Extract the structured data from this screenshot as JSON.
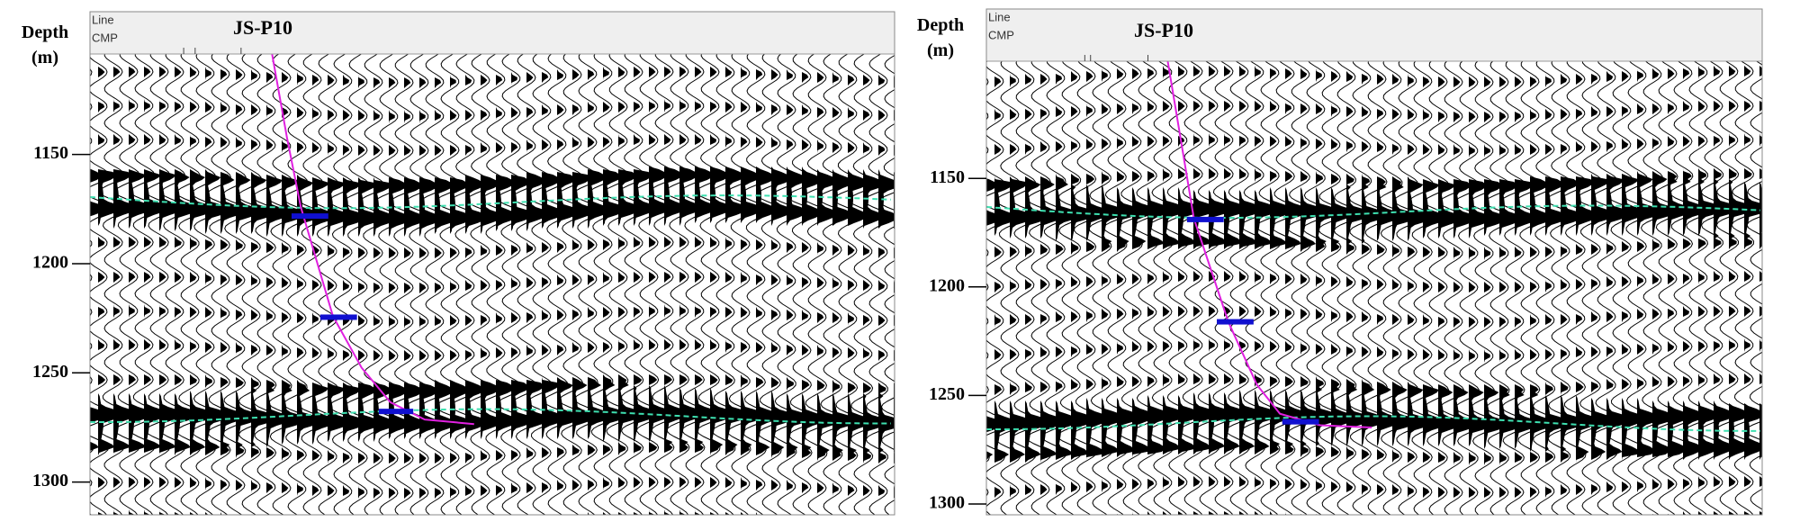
{
  "chart_data": [
    {
      "type": "seismic",
      "ylabel": "Depth (m)",
      "header_labels": [
        "Line",
        "CMP"
      ],
      "well_name": "JS-P10",
      "ylim": [
        1104,
        1315
      ],
      "yticks": [
        1150,
        1200,
        1250,
        1300
      ]
    },
    {
      "type": "seismic",
      "ylabel": "Depth (m)",
      "header_labels": [
        "Line",
        "CMP"
      ],
      "well_name": "JS-P10",
      "ylim": [
        1096,
        1305
      ],
      "yticks": [
        1150,
        1200,
        1250,
        1300
      ]
    }
  ]
}
